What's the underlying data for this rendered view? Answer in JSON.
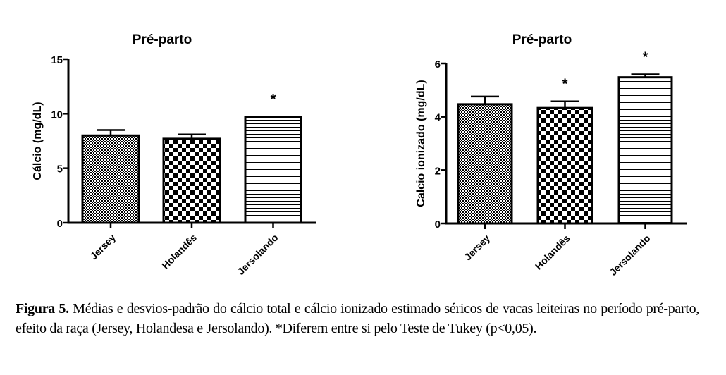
{
  "chart_data": [
    {
      "type": "bar",
      "title": "Pré-parto",
      "xlabel": "",
      "ylabel": "Cálcio (mg/dL)",
      "ylim": [
        0,
        15
      ],
      "yticks": [
        0,
        5,
        10,
        15
      ],
      "categories": [
        "Jersey",
        "Holandês",
        "Jersolando"
      ],
      "values": [
        8.0,
        7.7,
        9.7
      ],
      "error": [
        0.5,
        0.4,
        0.05
      ],
      "significance": [
        "",
        "",
        "*"
      ],
      "patterns": [
        "fine-checker",
        "coarse-checker",
        "horizontal-lines"
      ],
      "grid": false
    },
    {
      "type": "bar",
      "title": "Pré-parto",
      "xlabel": "",
      "ylabel": "Calcio ionizado (mg/dL)",
      "ylim": [
        0,
        6
      ],
      "yticks": [
        0,
        2,
        4,
        6
      ],
      "categories": [
        "Jersey",
        "Holandês",
        "Jersolando"
      ],
      "values": [
        4.47,
        4.33,
        5.48
      ],
      "error": [
        0.29,
        0.25,
        0.11
      ],
      "significance": [
        "",
        "*",
        "*"
      ],
      "patterns": [
        "fine-checker",
        "coarse-checker",
        "horizontal-lines"
      ],
      "grid": false
    }
  ],
  "caption": {
    "label": "Figura 5.",
    "text": " Médias e desvios-padrão do cálcio total e cálcio ionizado estimado séricos de vacas leiteiras no período pré-parto, efeito da raça (Jersey, Holandesa e Jersolando). *Diferem entre si pelo Teste de Tukey (p<0,05)."
  }
}
